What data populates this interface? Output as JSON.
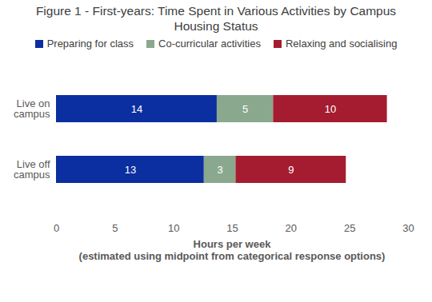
{
  "chart_data": {
    "type": "bar",
    "orientation": "horizontal",
    "stacked": true,
    "title": "Figure 1 - First-years: Time Spent in Various Activities by Campus Housing Status",
    "xlabel": "Hours per week\n(estimated using midpoint from categorical response options)",
    "categories": [
      "Live on campus",
      "Live off campus"
    ],
    "series": [
      {
        "name": "Preparing for class",
        "color": "#0b2ea0",
        "values": [
          13.7,
          12.6
        ],
        "value_labels": [
          "14",
          "13"
        ]
      },
      {
        "name": "Co-curricular activities",
        "color": "#8aa88e",
        "values": [
          4.8,
          2.7
        ],
        "value_labels": [
          "5",
          "3"
        ]
      },
      {
        "name": "Relaxing and socialising",
        "color": "#a51c30",
        "values": [
          9.7,
          9.4
        ],
        "value_labels": [
          "10",
          "9"
        ]
      }
    ],
    "xlim": [
      0,
      30
    ],
    "xticks": [
      0,
      5,
      10,
      15,
      20,
      25,
      30
    ],
    "grid": false,
    "legend": "top",
    "data_labels": true
  }
}
